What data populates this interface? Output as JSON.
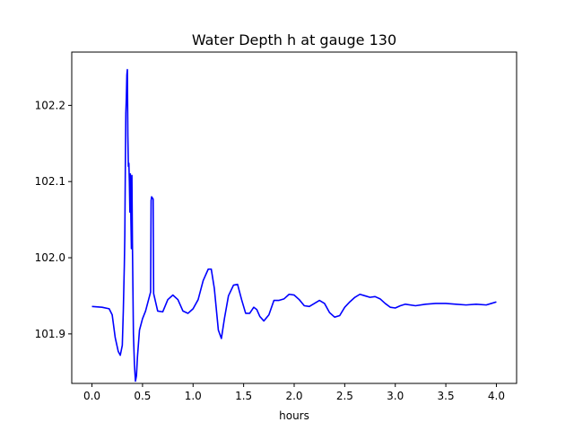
{
  "chart_data": {
    "type": "line",
    "title": "Water Depth h at gauge 130",
    "xlabel": "hours",
    "ylabel": "",
    "xlim": [
      -0.2,
      4.2
    ],
    "ylim": [
      101.835,
      102.27
    ],
    "xticks": [
      0.0,
      0.5,
      1.0,
      1.5,
      2.0,
      2.5,
      3.0,
      3.5,
      4.0
    ],
    "xtick_labels": [
      "0.0",
      "0.5",
      "1.0",
      "1.5",
      "2.0",
      "2.5",
      "3.0",
      "3.5",
      "4.0"
    ],
    "yticks": [
      101.9,
      102.0,
      102.1,
      102.2
    ],
    "ytick_labels": [
      "101.9",
      "102.0",
      "102.1",
      "102.2"
    ],
    "grid": false,
    "legend": false,
    "color": "#0000ff",
    "series": [
      {
        "x": [
          0.0,
          0.1,
          0.17,
          0.2,
          0.23,
          0.26,
          0.28,
          0.3,
          0.31,
          0.32,
          0.325,
          0.33,
          0.335,
          0.34,
          0.345,
          0.35,
          0.355,
          0.36,
          0.365,
          0.37,
          0.375,
          0.38,
          0.385,
          0.39,
          0.395,
          0.4,
          0.405,
          0.41,
          0.42,
          0.43,
          0.44,
          0.45,
          0.47,
          0.5,
          0.53,
          0.56,
          0.58,
          0.585,
          0.59,
          0.6,
          0.605,
          0.61,
          0.65,
          0.7,
          0.75,
          0.8,
          0.85,
          0.9,
          0.95,
          1.0,
          1.05,
          1.1,
          1.15,
          1.18,
          1.21,
          1.25,
          1.28,
          1.31,
          1.35,
          1.4,
          1.44,
          1.48,
          1.52,
          1.56,
          1.6,
          1.63,
          1.66,
          1.7,
          1.75,
          1.8,
          1.85,
          1.9,
          1.95,
          2.0,
          2.05,
          2.1,
          2.15,
          2.2,
          2.25,
          2.3,
          2.35,
          2.4,
          2.45,
          2.5,
          2.55,
          2.6,
          2.65,
          2.7,
          2.75,
          2.8,
          2.85,
          2.9,
          2.95,
          3.0,
          3.05,
          3.1,
          3.2,
          3.3,
          3.4,
          3.5,
          3.6,
          3.7,
          3.8,
          3.9,
          3.95,
          4.0
        ],
        "y": [
          101.936,
          101.935,
          101.933,
          101.925,
          101.895,
          101.877,
          101.872,
          101.885,
          101.93,
          101.99,
          102.03,
          102.12,
          102.19,
          102.21,
          102.24,
          102.247,
          102.16,
          102.12,
          102.124,
          102.1,
          102.06,
          102.11,
          102.05,
          102.012,
          102.108,
          102.02,
          101.96,
          101.9,
          101.86,
          101.838,
          101.845,
          101.87,
          101.905,
          101.92,
          101.93,
          101.945,
          101.955,
          102.075,
          102.08,
          102.078,
          102.077,
          101.953,
          101.93,
          101.929,
          101.945,
          101.951,
          101.945,
          101.93,
          101.927,
          101.933,
          101.945,
          101.97,
          101.985,
          101.985,
          101.96,
          101.905,
          101.894,
          101.92,
          101.95,
          101.964,
          101.965,
          101.945,
          101.927,
          101.927,
          101.935,
          101.932,
          101.923,
          101.917,
          101.925,
          101.944,
          101.944,
          101.946,
          101.952,
          101.951,
          101.945,
          101.937,
          101.936,
          101.94,
          101.944,
          101.94,
          101.928,
          101.922,
          101.924,
          101.935,
          101.942,
          101.948,
          101.952,
          101.95,
          101.948,
          101.949,
          101.946,
          101.94,
          101.935,
          101.934,
          101.937,
          101.939,
          101.937,
          101.939,
          101.94,
          101.94,
          101.939,
          101.938,
          101.939,
          101.938,
          101.94,
          101.942
        ]
      }
    ]
  }
}
